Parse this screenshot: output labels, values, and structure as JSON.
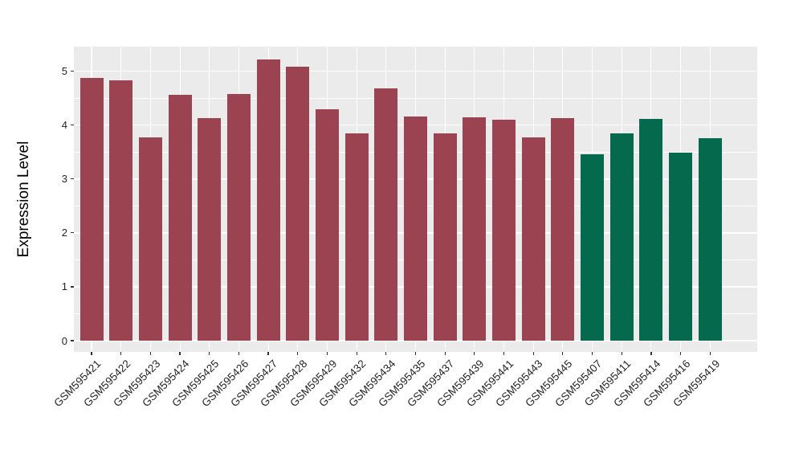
{
  "chart_data": {
    "type": "bar",
    "title": "",
    "xlabel": "",
    "ylabel": "Expression Level",
    "categories": [
      "GSM595421",
      "GSM595422",
      "GSM595423",
      "GSM595424",
      "GSM595425",
      "GSM595426",
      "GSM595427",
      "GSM595428",
      "GSM595429",
      "GSM595432",
      "GSM595434",
      "GSM595435",
      "GSM595437",
      "GSM595439",
      "GSM595441",
      "GSM595443",
      "GSM595445",
      "GSM595407",
      "GSM595411",
      "GSM595414",
      "GSM595416",
      "GSM595419"
    ],
    "values": [
      4.88,
      4.83,
      3.78,
      4.57,
      4.13,
      4.58,
      5.22,
      5.09,
      4.3,
      3.84,
      4.68,
      4.16,
      3.84,
      4.15,
      4.1,
      3.77,
      4.13,
      3.46,
      3.84,
      4.12,
      3.49,
      3.76
    ],
    "bar_colors": [
      "#9c4352",
      "#9c4352",
      "#9c4352",
      "#9c4352",
      "#9c4352",
      "#9c4352",
      "#9c4352",
      "#9c4352",
      "#9c4352",
      "#9c4352",
      "#9c4352",
      "#9c4352",
      "#9c4352",
      "#9c4352",
      "#9c4352",
      "#9c4352",
      "#9c4352",
      "#056a4d",
      "#056a4d",
      "#056a4d",
      "#056a4d",
      "#056a4d"
    ],
    "group_colors": {
      "left_group": "#9c4352",
      "right_group": "#056a4d"
    },
    "yticks": [
      0,
      1,
      2,
      3,
      4,
      5
    ],
    "ylim": [
      -0.21,
      5.46
    ],
    "grid": true,
    "legend_position": "none",
    "panel_background": "#ebebeb",
    "gridline_color": "#ffffff",
    "axis_text_color": "#262626"
  }
}
